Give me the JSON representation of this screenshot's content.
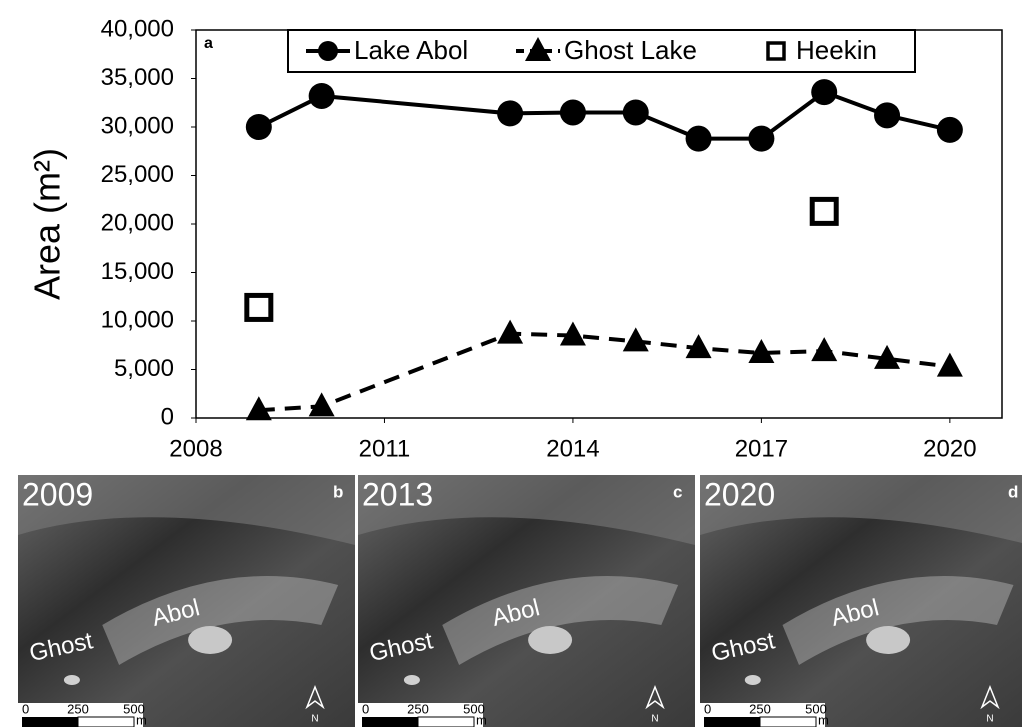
{
  "chart_data": {
    "type": "line",
    "panel_label": "a",
    "ylabel": "Area (m²)",
    "x": [
      2009,
      2010,
      2013,
      2014,
      2015,
      2016,
      2017,
      2018,
      2019,
      2020
    ],
    "series": [
      {
        "name": "Lake Abol",
        "color": "#000000",
        "marker": "circle",
        "line": "solid",
        "values": [
          30000,
          33200,
          31400,
          31500,
          31500,
          28800,
          28800,
          33600,
          31200,
          29700
        ]
      },
      {
        "name": "Ghost Lake",
        "color": "#000000",
        "marker": "triangle",
        "line": "dashed",
        "values": [
          800,
          1200,
          8700,
          8500,
          7900,
          7200,
          6700,
          6900,
          6100,
          5300
        ]
      },
      {
        "name": "Heekin",
        "color": "#000000",
        "marker": "square",
        "line": "none",
        "values": [
          11400,
          null,
          null,
          null,
          null,
          null,
          null,
          21300,
          null,
          null
        ]
      }
    ],
    "xlim": [
      2008,
      2020.83
    ],
    "xticks": [
      2008,
      2011,
      2014,
      2017,
      2020
    ],
    "ylim": [
      0,
      40000
    ],
    "yticks": [
      {
        "value": 0,
        "label": "0"
      },
      {
        "value": 5000,
        "label": "5,000"
      },
      {
        "value": 10000,
        "label": "10,000"
      },
      {
        "value": 15000,
        "label": "15,000"
      },
      {
        "value": 20000,
        "label": "20,000"
      },
      {
        "value": 25000,
        "label": "25,000"
      },
      {
        "value": 30000,
        "label": "30,000"
      },
      {
        "value": 35000,
        "label": "35,000"
      },
      {
        "value": 40000,
        "label": "40,000"
      }
    ],
    "legend": "top"
  },
  "panels": [
    {
      "year": "2009",
      "letter": "b",
      "ghost": "Ghost",
      "abol": "Abol",
      "scale": [
        "0",
        "250",
        "500"
      ],
      "unit": "m",
      "north": "N"
    },
    {
      "year": "2013",
      "letter": "c",
      "ghost": "Ghost",
      "abol": "Abol",
      "scale": [
        "0",
        "250",
        "500"
      ],
      "unit": "m",
      "north": "N"
    },
    {
      "year": "2020",
      "letter": "d",
      "ghost": "Ghost",
      "abol": "Abol",
      "scale": [
        "0",
        "250",
        "500"
      ],
      "unit": "m",
      "north": "N"
    }
  ]
}
